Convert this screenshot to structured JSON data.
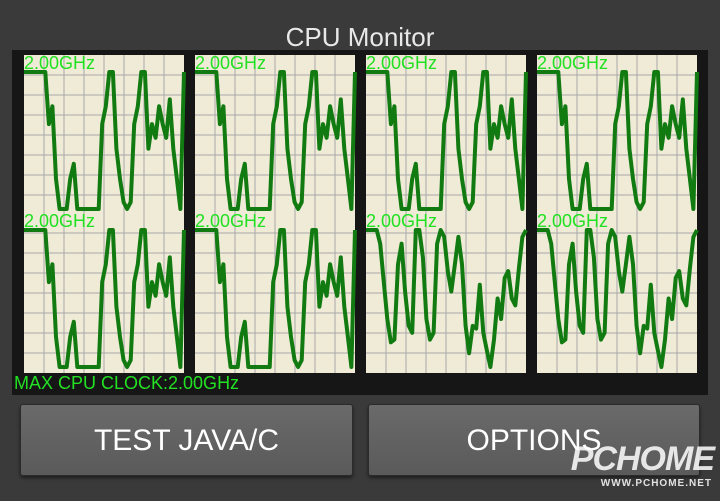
{
  "app": {
    "title": "CPU Monitor"
  },
  "cpus": [
    {
      "label": "2.00GHz",
      "load": [
        1,
        1,
        1,
        1,
        1,
        1,
        1,
        0.62,
        0.75,
        0.22,
        0,
        0,
        0,
        0.22,
        0.33,
        0,
        0,
        0,
        0,
        0,
        0,
        0,
        0.62,
        0.75,
        1,
        1,
        0.44,
        0.22,
        0.05,
        0,
        0.05,
        0.62,
        0.75,
        1,
        1,
        0.44,
        0.62,
        0.52,
        0.75,
        0.62,
        0.52,
        0.8,
        0.44,
        0.22,
        0,
        1
      ]
    },
    {
      "label": "2.00GHz",
      "load": [
        1,
        1,
        1,
        1,
        1,
        1,
        1,
        0.62,
        0.75,
        0.22,
        0,
        0,
        0,
        0.22,
        0.33,
        0,
        0,
        0,
        0,
        0,
        0,
        0,
        0.62,
        0.75,
        1,
        1,
        0.44,
        0.22,
        0.05,
        0,
        0.05,
        0.62,
        0.75,
        1,
        1,
        0.44,
        0.62,
        0.52,
        0.75,
        0.62,
        0.52,
        0.8,
        0.44,
        0.22,
        0,
        1
      ]
    },
    {
      "label": "2.00GHz",
      "load": [
        1,
        1,
        1,
        1,
        1,
        1,
        1,
        0.62,
        0.75,
        0.22,
        0,
        0,
        0,
        0.22,
        0.33,
        0,
        0,
        0,
        0,
        0,
        0,
        0,
        0.62,
        0.75,
        1,
        1,
        0.44,
        0.22,
        0.05,
        0,
        0.05,
        0.62,
        0.75,
        1,
        1,
        0.44,
        0.62,
        0.52,
        0.75,
        0.62,
        0.52,
        0.8,
        0.44,
        0.22,
        0,
        1
      ]
    },
    {
      "label": "2.00GHz",
      "load": [
        1,
        1,
        1,
        1,
        1,
        1,
        1,
        0.62,
        0.75,
        0.22,
        0,
        0,
        0,
        0.22,
        0.33,
        0,
        0,
        0,
        0,
        0,
        0,
        0,
        0.62,
        0.75,
        1,
        1,
        0.44,
        0.22,
        0.05,
        0,
        0.05,
        0.62,
        0.75,
        1,
        1,
        0.44,
        0.62,
        0.52,
        0.75,
        0.62,
        0.52,
        0.8,
        0.44,
        0.22,
        0,
        1
      ]
    },
    {
      "label": "2.00GHz",
      "load": [
        1,
        1,
        1,
        1,
        1,
        1,
        1,
        0.62,
        0.75,
        0.22,
        0,
        0,
        0,
        0.22,
        0.33,
        0,
        0,
        0,
        0,
        0,
        0,
        0,
        0.62,
        0.75,
        1,
        1,
        0.44,
        0.22,
        0.05,
        0,
        0.05,
        0.62,
        0.75,
        1,
        1,
        0.44,
        0.62,
        0.52,
        0.75,
        0.62,
        0.52,
        0.8,
        0.44,
        0.22,
        0,
        1
      ]
    },
    {
      "label": "2.00GHz",
      "load": [
        1,
        1,
        1,
        1,
        1,
        1,
        1,
        0.62,
        0.75,
        0.22,
        0,
        0,
        0,
        0.22,
        0.33,
        0,
        0,
        0,
        0,
        0,
        0,
        0,
        0.62,
        0.75,
        1,
        1,
        0.44,
        0.22,
        0.05,
        0,
        0.05,
        0.62,
        0.75,
        1,
        1,
        0.44,
        0.62,
        0.52,
        0.75,
        0.62,
        0.52,
        0.8,
        0.44,
        0.22,
        0,
        1
      ]
    },
    {
      "label": "2.00GHz",
      "load": [
        1,
        1,
        1,
        1,
        0.9,
        0.62,
        0.35,
        0.18,
        0.2,
        0.75,
        0.9,
        0.55,
        0.3,
        0.25,
        1,
        1,
        0.8,
        0.35,
        0.2,
        0.25,
        0.9,
        1,
        0.95,
        0.7,
        0.55,
        0.75,
        0.95,
        0.75,
        0.3,
        0.1,
        0.3,
        0.28,
        0.6,
        0.25,
        0.12,
        0,
        0.2,
        0.5,
        0.35,
        0.65,
        0.7,
        0.5,
        0.45,
        0.72,
        0.95,
        1
      ]
    },
    {
      "label": "2.00GHz",
      "load": [
        1,
        1,
        1,
        1,
        0.9,
        0.62,
        0.35,
        0.18,
        0.2,
        0.75,
        0.9,
        0.55,
        0.3,
        0.25,
        1,
        1,
        0.8,
        0.35,
        0.2,
        0.25,
        0.9,
        1,
        0.95,
        0.7,
        0.55,
        0.75,
        0.95,
        0.75,
        0.3,
        0.1,
        0.3,
        0.28,
        0.6,
        0.25,
        0.12,
        0,
        0.2,
        0.5,
        0.35,
        0.65,
        0.7,
        0.5,
        0.45,
        0.72,
        0.95,
        1
      ]
    }
  ],
  "status": {
    "max_clock": "MAX CPU CLOCK:2.00GHz"
  },
  "buttons": {
    "test": "TEST JAVA/C",
    "options": "OPTIONS"
  },
  "watermark": {
    "logo": "PCHOME",
    "site": "WWW.PCHOME.NET"
  },
  "colors": {
    "graph_bg": "#efebd6",
    "grid": "#a9a9a9",
    "line": "#117a11",
    "label": "#22e022"
  }
}
